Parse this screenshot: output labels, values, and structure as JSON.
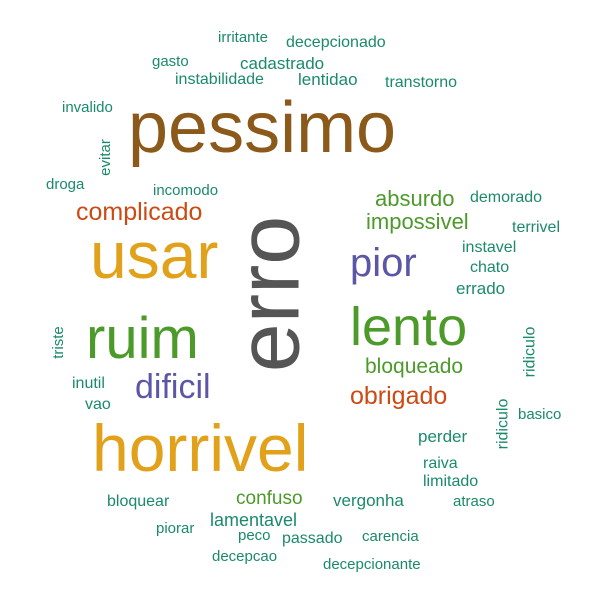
{
  "colors": {
    "dark_gray": "#555555",
    "brown": "#8B5A1A",
    "gold": "#E1A11A",
    "green": "#4C9A2A",
    "purple": "#5B57A6",
    "orange": "#CC4A14",
    "teal": "#1B8A6B"
  },
  "words": [
    {
      "id": "erro",
      "text": "erro",
      "size": 88,
      "color": "dark_gray",
      "rotated": true
    },
    {
      "id": "pessimo",
      "text": "pessimo",
      "size": 72,
      "color": "brown",
      "rotated": false
    },
    {
      "id": "usar",
      "text": "usar",
      "size": 66,
      "color": "gold",
      "rotated": false
    },
    {
      "id": "horrivel",
      "text": "horrivel",
      "size": 66,
      "color": "gold",
      "rotated": false
    },
    {
      "id": "ruim",
      "text": "ruim",
      "size": 58,
      "color": "green",
      "rotated": false
    },
    {
      "id": "lento",
      "text": "lento",
      "size": 54,
      "color": "green",
      "rotated": false
    },
    {
      "id": "pior",
      "text": "pior",
      "size": 40,
      "color": "purple",
      "rotated": false
    },
    {
      "id": "dificil",
      "text": "dificil",
      "size": 34,
      "color": "purple",
      "rotated": false
    },
    {
      "id": "complicado",
      "text": "complicado",
      "size": 25,
      "color": "orange",
      "rotated": false
    },
    {
      "id": "obrigado",
      "text": "obrigado",
      "size": 25,
      "color": "orange",
      "rotated": false
    },
    {
      "id": "absurdo",
      "text": "absurdo",
      "size": 22,
      "color": "green",
      "rotated": false
    },
    {
      "id": "impossivel",
      "text": "impossivel",
      "size": 22,
      "color": "green",
      "rotated": false
    },
    {
      "id": "bloqueado",
      "text": "bloqueado",
      "size": 21,
      "color": "green",
      "rotated": false
    },
    {
      "id": "confuso",
      "text": "confuso",
      "size": 19,
      "color": "green",
      "rotated": false
    },
    {
      "id": "lamentavel",
      "text": "lamentavel",
      "size": 18,
      "color": "teal",
      "rotated": false
    },
    {
      "id": "vergonha",
      "text": "vergonha",
      "size": 17,
      "color": "teal",
      "rotated": false
    },
    {
      "id": "perder",
      "text": "perder",
      "size": 17,
      "color": "teal",
      "rotated": false
    },
    {
      "id": "errado",
      "text": "errado",
      "size": 17,
      "color": "teal",
      "rotated": false
    },
    {
      "id": "chato",
      "text": "chato",
      "size": 16,
      "color": "teal",
      "rotated": false
    },
    {
      "id": "instavel",
      "text": "instavel",
      "size": 16,
      "color": "teal",
      "rotated": false
    },
    {
      "id": "demorado",
      "text": "demorado",
      "size": 16,
      "color": "teal",
      "rotated": false
    },
    {
      "id": "terrivel",
      "text": "terrivel",
      "size": 16,
      "color": "teal",
      "rotated": false
    },
    {
      "id": "raiva",
      "text": "raiva",
      "size": 16,
      "color": "teal",
      "rotated": false
    },
    {
      "id": "limitado",
      "text": "limitado",
      "size": 16,
      "color": "teal",
      "rotated": false
    },
    {
      "id": "lentidao",
      "text": "lentidao",
      "size": 17,
      "color": "teal",
      "rotated": false
    },
    {
      "id": "cadastrado",
      "text": "cadastrado",
      "size": 17,
      "color": "teal",
      "rotated": false
    },
    {
      "id": "instabilidade",
      "text": "instabilidade",
      "size": 16,
      "color": "teal",
      "rotated": false
    },
    {
      "id": "transtorno",
      "text": "transtorno",
      "size": 16,
      "color": "teal",
      "rotated": false
    },
    {
      "id": "irritante",
      "text": "irritante",
      "size": 15,
      "color": "teal",
      "rotated": false
    },
    {
      "id": "decepcionado",
      "text": "decepcionado",
      "size": 16,
      "color": "teal",
      "rotated": false
    },
    {
      "id": "gasto",
      "text": "gasto",
      "size": 15,
      "color": "teal",
      "rotated": false
    },
    {
      "id": "invalido",
      "text": "invalido",
      "size": 15,
      "color": "teal",
      "rotated": false
    },
    {
      "id": "droga",
      "text": "droga",
      "size": 15,
      "color": "teal",
      "rotated": false
    },
    {
      "id": "evitar",
      "text": "evitar",
      "size": 15,
      "color": "teal",
      "rotated": true
    },
    {
      "id": "incomodo",
      "text": "incomodo",
      "size": 15,
      "color": "teal",
      "rotated": false
    },
    {
      "id": "triste",
      "text": "triste",
      "size": 15,
      "color": "teal",
      "rotated": true
    },
    {
      "id": "inutil",
      "text": "inutil",
      "size": 16,
      "color": "teal",
      "rotated": false
    },
    {
      "id": "vao",
      "text": "vao",
      "size": 16,
      "color": "teal",
      "rotated": false
    },
    {
      "id": "ridiculo1",
      "text": "ridiculo",
      "size": 16,
      "color": "teal",
      "rotated": true
    },
    {
      "id": "ridiculo2",
      "text": "ridiculo",
      "size": 16,
      "color": "teal",
      "rotated": true
    },
    {
      "id": "basico",
      "text": "basico",
      "size": 15,
      "color": "teal",
      "rotated": false
    },
    {
      "id": "atraso",
      "text": "atraso",
      "size": 15,
      "color": "teal",
      "rotated": false
    },
    {
      "id": "bloquear",
      "text": "bloquear",
      "size": 16,
      "color": "teal",
      "rotated": false
    },
    {
      "id": "piorar",
      "text": "piorar",
      "size": 15,
      "color": "teal",
      "rotated": false
    },
    {
      "id": "peco",
      "text": "peco",
      "size": 15,
      "color": "teal",
      "rotated": false
    },
    {
      "id": "passado",
      "text": "passado",
      "size": 16,
      "color": "teal",
      "rotated": false
    },
    {
      "id": "carencia",
      "text": "carencia",
      "size": 15,
      "color": "teal",
      "rotated": false
    },
    {
      "id": "decepcao",
      "text": "decepcao",
      "size": 15,
      "color": "teal",
      "rotated": false
    },
    {
      "id": "decepcionante",
      "text": "decepcionante",
      "size": 15,
      "color": "teal",
      "rotated": false
    }
  ]
}
